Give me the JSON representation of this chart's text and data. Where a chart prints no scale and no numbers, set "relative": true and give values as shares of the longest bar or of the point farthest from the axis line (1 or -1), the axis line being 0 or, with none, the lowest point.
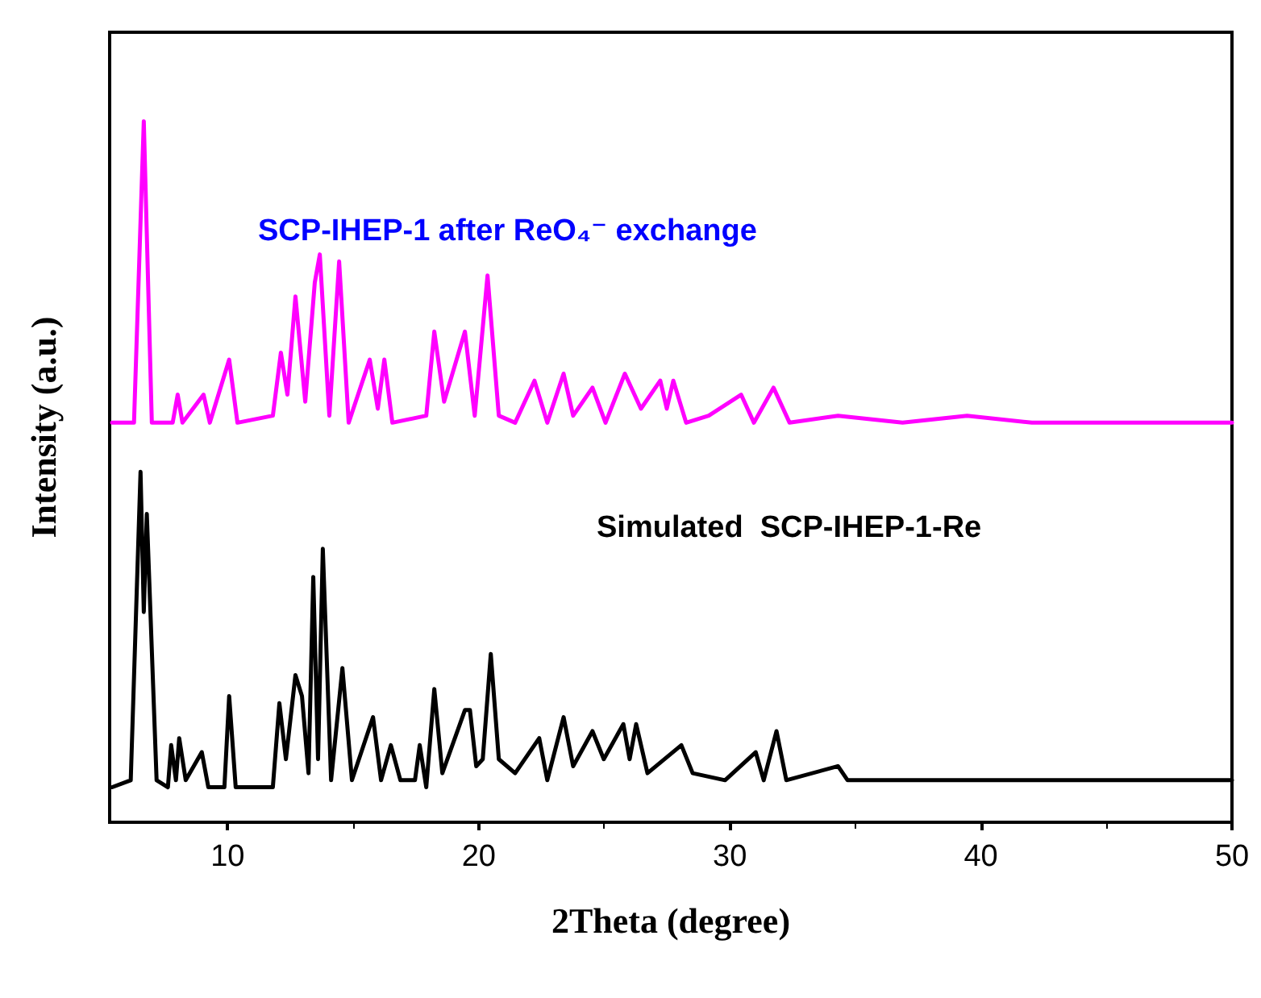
{
  "chart_data": {
    "type": "line",
    "xlabel": "2Theta (degree)",
    "ylabel": "Intensity (a.u.)",
    "relative": true,
    "xlim": [
      5.3,
      50
    ],
    "xticks": [
      10,
      20,
      30,
      40,
      50
    ],
    "tick_labels": "x",
    "grid": false,
    "legend": false,
    "marker": "none",
    "line_style": "solid",
    "series": [
      {
        "name": "SCP-IHEP-1 after ReO₄⁻ exchange",
        "color": "#ff00ff",
        "x": [
          5.4,
          6.27,
          6.66,
          6.98,
          7.81,
          8.01,
          8.2,
          9.04,
          9.29,
          10.06,
          10.39,
          11.8,
          12.12,
          12.38,
          12.7,
          13.09,
          13.47,
          13.67,
          14.05,
          14.44,
          14.82,
          15.66,
          15.98,
          16.24,
          16.56,
          17.91,
          18.23,
          18.62,
          19.45,
          19.84,
          20.35,
          20.8,
          21.45,
          22.22,
          22.73,
          23.38,
          23.76,
          24.53,
          25.05,
          25.82,
          26.46,
          27.23,
          27.49,
          27.75,
          28.26,
          29.16,
          30.45,
          30.96,
          31.74,
          32.38,
          34.31,
          36.88,
          39.45,
          42.03,
          45.88,
          50
        ],
        "values": [
          0.57,
          0.57,
          1.0,
          0.57,
          0.57,
          0.61,
          0.57,
          0.61,
          0.57,
          0.66,
          0.57,
          0.58,
          0.67,
          0.61,
          0.75,
          0.6,
          0.77,
          0.81,
          0.58,
          0.8,
          0.57,
          0.66,
          0.59,
          0.66,
          0.57,
          0.58,
          0.7,
          0.6,
          0.7,
          0.58,
          0.78,
          0.58,
          0.57,
          0.63,
          0.57,
          0.64,
          0.58,
          0.62,
          0.57,
          0.64,
          0.59,
          0.63,
          0.59,
          0.63,
          0.57,
          0.58,
          0.61,
          0.57,
          0.62,
          0.57,
          0.58,
          0.57,
          0.58,
          0.57,
          0.57,
          0.57
        ]
      },
      {
        "name": "Simulated  SCP-IHEP-1-Re",
        "color": "#000000",
        "x": [
          5.4,
          6.14,
          6.53,
          6.66,
          6.78,
          7.17,
          7.62,
          7.75,
          7.94,
          8.07,
          8.33,
          8.97,
          9.23,
          9.87,
          10.06,
          10.32,
          11.8,
          12.06,
          12.32,
          12.7,
          12.96,
          13.22,
          13.41,
          13.6,
          13.79,
          14.12,
          14.57,
          14.95,
          15.79,
          16.11,
          16.5,
          16.88,
          17.46,
          17.65,
          17.91,
          18.23,
          18.55,
          19.45,
          19.65,
          19.9,
          20.16,
          20.48,
          20.8,
          21.45,
          22.41,
          22.73,
          23.38,
          23.76,
          24.53,
          24.98,
          25.76,
          26.01,
          26.27,
          26.72,
          28.07,
          28.52,
          29.81,
          31.03,
          31.35,
          31.86,
          32.25,
          34.31,
          34.69,
          36.88,
          39.45,
          42.67,
          45.88,
          50
        ],
        "values": [
          0.05,
          0.06,
          0.5,
          0.3,
          0.44,
          0.06,
          0.05,
          0.11,
          0.06,
          0.12,
          0.06,
          0.1,
          0.05,
          0.05,
          0.18,
          0.05,
          0.05,
          0.17,
          0.09,
          0.21,
          0.18,
          0.07,
          0.35,
          0.09,
          0.39,
          0.06,
          0.22,
          0.06,
          0.15,
          0.06,
          0.11,
          0.06,
          0.06,
          0.11,
          0.05,
          0.19,
          0.07,
          0.16,
          0.16,
          0.08,
          0.09,
          0.24,
          0.09,
          0.07,
          0.12,
          0.06,
          0.15,
          0.08,
          0.13,
          0.09,
          0.14,
          0.09,
          0.14,
          0.07,
          0.11,
          0.07,
          0.06,
          0.1,
          0.06,
          0.13,
          0.06,
          0.08,
          0.06,
          0.06,
          0.06,
          0.06,
          0.06,
          0.06
        ]
      }
    ]
  }
}
